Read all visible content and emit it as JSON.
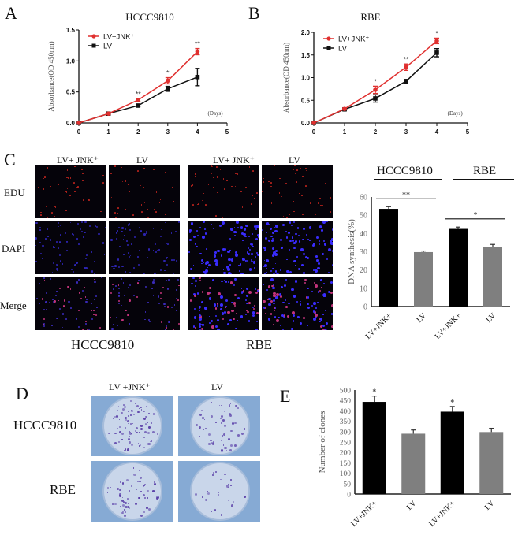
{
  "panels": {
    "A": {
      "letter": "A",
      "title": "HCCC9810",
      "ylabel": "Absorbance(OD 450nm)",
      "xunit": "(Days)",
      "legend": [
        "LV+JNK⁺",
        "LV"
      ]
    },
    "B": {
      "letter": "B",
      "title": "RBE",
      "ylabel": "Absorbance(OD 450nm)",
      "xunit": "(Days)",
      "legend": [
        "LV+JNK⁺",
        "LV"
      ]
    },
    "C": {
      "letter": "C",
      "col_labels": [
        "LV+ JNK⁺",
        "LV",
        "LV+ JNK⁺",
        "LV"
      ],
      "row_labels": [
        "EDU",
        "DAPI",
        "Merge"
      ],
      "group_labels": [
        "HCCC9810",
        "RBE"
      ],
      "chart_groups": [
        "HCCC9810",
        "RBE"
      ],
      "ylabel": "DNA synthesis(%)"
    },
    "D": {
      "letter": "D",
      "col_labels": [
        "LV +JNK⁺",
        "LV"
      ],
      "row_labels": [
        "HCCC9810",
        "RBE"
      ]
    },
    "E": {
      "letter": "E",
      "ylabel": "Number of clones"
    }
  },
  "colors": {
    "red_series": "#e0302f",
    "black_series": "#111111",
    "gray_bar": "#7f7f7f",
    "black_bar": "#000000",
    "dish_bg": "#86aad4"
  },
  "chart_data": [
    {
      "id": "A",
      "type": "line",
      "title": "HCCC9810",
      "xlabel": "(Days)",
      "ylabel": "Absorbance(OD 450nm)",
      "x": [
        0,
        1,
        2,
        3,
        4
      ],
      "xticks": [
        0,
        1,
        2,
        3,
        4,
        5
      ],
      "yticks": [
        0.0,
        0.5,
        1.0,
        1.5
      ],
      "ylim": [
        0,
        1.5
      ],
      "xlim": [
        0,
        5
      ],
      "series": [
        {
          "name": "LV+JNK⁺",
          "color": "#e0302f",
          "marker": "circle",
          "values": [
            0.0,
            0.15,
            0.37,
            0.68,
            1.15
          ],
          "errors": [
            0,
            0.01,
            0.02,
            0.05,
            0.05
          ]
        },
        {
          "name": "LV",
          "color": "#111111",
          "marker": "square",
          "values": [
            0.0,
            0.15,
            0.28,
            0.55,
            0.74
          ],
          "errors": [
            0,
            0.01,
            0.02,
            0.04,
            0.14
          ]
        }
      ],
      "annotations": [
        {
          "x": 2,
          "text": "**"
        },
        {
          "x": 3,
          "text": "*"
        },
        {
          "x": 4,
          "text": "**"
        }
      ],
      "grid": false,
      "legend_position": "upper-left"
    },
    {
      "id": "B",
      "type": "line",
      "title": "RBE",
      "xlabel": "(Days)",
      "ylabel": "Absorbance(OD 450nm)",
      "x": [
        0,
        1,
        2,
        3,
        4
      ],
      "xticks": [
        0,
        1,
        2,
        3,
        4,
        5
      ],
      "yticks": [
        0.0,
        0.5,
        1.0,
        1.5,
        2.0
      ],
      "ylim": [
        0,
        2.0
      ],
      "xlim": [
        0,
        5
      ],
      "series": [
        {
          "name": "LV+JNK⁺",
          "color": "#e0302f",
          "marker": "circle",
          "values": [
            0.0,
            0.31,
            0.73,
            1.23,
            1.81
          ],
          "errors": [
            0,
            0.02,
            0.08,
            0.07,
            0.06
          ]
        },
        {
          "name": "LV",
          "color": "#111111",
          "marker": "square",
          "values": [
            0.0,
            0.3,
            0.54,
            0.92,
            1.55
          ],
          "errors": [
            0,
            0.02,
            0.08,
            0.04,
            0.09
          ]
        }
      ],
      "annotations": [
        {
          "x": 2,
          "text": "*"
        },
        {
          "x": 3,
          "text": "**"
        },
        {
          "x": 4,
          "text": "*"
        }
      ],
      "grid": false,
      "legend_position": "upper-left"
    },
    {
      "id": "C",
      "type": "bar",
      "title": "",
      "ylabel": "DNA synthesis(%)",
      "categories": [
        "LV+JNK+",
        "LV",
        "LV+JNK+",
        "LV"
      ],
      "groups": [
        "HCCC9810",
        "HCCC9810",
        "RBE",
        "RBE"
      ],
      "values": [
        53.5,
        29.8,
        42.5,
        32.5
      ],
      "errors": [
        1.2,
        0.6,
        1.0,
        1.5
      ],
      "colors": [
        "#000000",
        "#7f7f7f",
        "#000000",
        "#7f7f7f"
      ],
      "yticks": [
        0,
        10,
        20,
        30,
        40,
        50,
        60
      ],
      "ylim": [
        0,
        60
      ],
      "significance": [
        {
          "from": 0,
          "to": 1,
          "text": "**",
          "y": 59
        },
        {
          "from": 2,
          "to": 3,
          "text": "*",
          "y": 48
        }
      ]
    },
    {
      "id": "E",
      "type": "bar",
      "title": "",
      "ylabel": "Number of clones",
      "categories": [
        "LV+JNK+",
        "LV",
        "LV+JNK+",
        "LV"
      ],
      "values": [
        443,
        290,
        396,
        298
      ],
      "errors": [
        28,
        18,
        25,
        18
      ],
      "colors": [
        "#000000",
        "#7f7f7f",
        "#000000",
        "#7f7f7f"
      ],
      "yticks": [
        0,
        50,
        100,
        150,
        200,
        250,
        300,
        350,
        400,
        450,
        500
      ],
      "ylim": [
        0,
        500
      ],
      "annotations": [
        {
          "index": 0,
          "text": "*"
        },
        {
          "index": 2,
          "text": "*"
        }
      ]
    }
  ]
}
